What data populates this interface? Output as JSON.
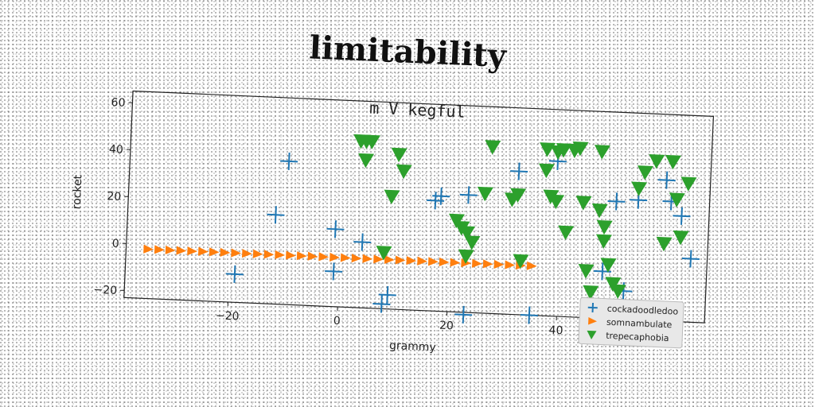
{
  "header": {
    "title": "limitability"
  },
  "chart_data": {
    "type": "scatter",
    "title": "m V kegful",
    "xlabel": "grammy",
    "ylabel": "rocket",
    "xlim": [
      -39,
      67
    ],
    "ylim": [
      -23,
      65
    ],
    "xticks": [
      -20,
      0,
      20,
      40,
      60
    ],
    "yticks": [
      -20,
      0,
      20,
      40,
      60
    ],
    "legend_position": "lower right",
    "series": [
      {
        "name": "cockadoodledoo",
        "marker": "plus",
        "color": "#1f77b4",
        "x": [
          -19,
          -10,
          -12,
          -1,
          4,
          -1,
          8,
          9,
          17,
          18,
          23,
          23,
          32,
          35,
          39,
          48,
          50,
          52,
          54,
          59,
          60,
          62,
          64
        ],
        "y": [
          -11,
          38,
          15,
          10,
          5,
          -8,
          -21,
          -17,
          24,
          26,
          27,
          -24,
          38,
          -23,
          43,
          -3,
          27,
          -11,
          28,
          37,
          28,
          22,
          4
        ]
      },
      {
        "name": "somnambulate",
        "marker": "triangle-right",
        "color": "#ff7f0e",
        "x": [
          -35,
          -33,
          -31,
          -29,
          -27,
          -25,
          -23,
          -21,
          -19,
          -17,
          -15,
          -13,
          -11,
          -9,
          -7,
          -5,
          -3,
          -1,
          1,
          3,
          5,
          7,
          9,
          11,
          13,
          15,
          17,
          19,
          21,
          23,
          25,
          27,
          29,
          31,
          33,
          35
        ],
        "y": [
          -2,
          -2,
          -2,
          -2,
          -2,
          -2,
          -2,
          -2,
          -2,
          -2,
          -2,
          -2,
          -2,
          -2,
          -2,
          -2,
          -2,
          -2,
          -2,
          -2,
          -2,
          -2,
          -2,
          -2,
          -2,
          -2,
          -2,
          -2,
          -2,
          -2,
          -2,
          -2,
          -2,
          -2,
          -2,
          -2
        ]
      },
      {
        "name": "trepecaphobia",
        "marker": "triangle-down",
        "color": "#2ca02c",
        "x": [
          3,
          4,
          5,
          4,
          10,
          11,
          9,
          8,
          21,
          22,
          23,
          24,
          23,
          27,
          26,
          31,
          32,
          33,
          37,
          37,
          38,
          39,
          40,
          39,
          41,
          42,
          43,
          44,
          47,
          47,
          48,
          48,
          49,
          45,
          46,
          50,
          51,
          54,
          55,
          57,
          59,
          60,
          61,
          62,
          63
        ],
        "y": [
          48,
          48,
          48,
          40,
          43,
          36,
          25,
          1,
          16,
          13,
          11,
          7,
          1,
          48,
          28,
          26,
          28,
          0,
          48,
          39,
          28,
          26,
          48,
          47,
          13,
          48,
          49,
          26,
          48,
          23,
          16,
          10,
          0,
          -3,
          -12,
          -8,
          -11,
          33,
          40,
          45,
          10,
          45,
          29,
          13,
          36
        ]
      }
    ]
  }
}
